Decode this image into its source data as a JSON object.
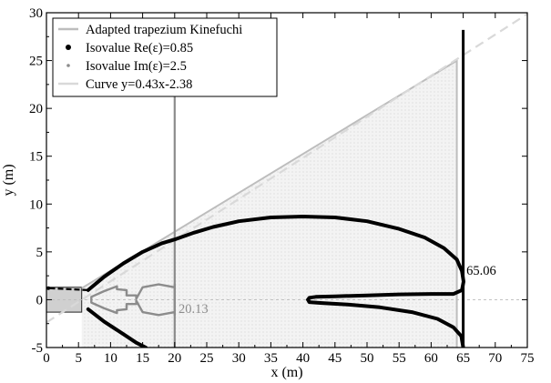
{
  "chart_data": {
    "type": "line",
    "xlabel": "x (m)",
    "ylabel": "y (m)",
    "xlim": [
      0,
      75
    ],
    "ylim": [
      -5,
      30
    ],
    "xticks": [
      "0",
      "5",
      "10",
      "15",
      "20",
      "25",
      "30",
      "35",
      "40",
      "45",
      "50",
      "55",
      "60",
      "65",
      "70",
      "75"
    ],
    "yticks": [
      "-5",
      "0",
      "5",
      "10",
      "15",
      "20",
      "25",
      "30"
    ],
    "grid": false,
    "legend_position": "top-left",
    "colors": {
      "trapezium": "#bdbdbd",
      "re_isovalue": "#000000",
      "im_isovalue": "#8c8c8c",
      "curve": "#d9d9d9",
      "fill": "#ececec"
    },
    "series": [
      {
        "name": "Adapted trapezium Kinefuchi",
        "style": "trapezium",
        "points": [
          [
            5.5,
            1.2
          ],
          [
            64,
            25.0
          ],
          [
            64,
            -5
          ],
          [
            5.5,
            -5
          ]
        ]
      },
      {
        "name": "Isovalue Re(ε)=0.85",
        "style": "re",
        "upper": [
          [
            6.5,
            1.0
          ],
          [
            9,
            2.4
          ],
          [
            12,
            3.8
          ],
          [
            15,
            5.0
          ],
          [
            18,
            5.9
          ],
          [
            20,
            6.3
          ],
          [
            23,
            7.0
          ],
          [
            26,
            7.6
          ],
          [
            30,
            8.2
          ],
          [
            35,
            8.6
          ],
          [
            40,
            8.7
          ],
          [
            45,
            8.6
          ],
          [
            50,
            8.2
          ],
          [
            55,
            7.4
          ],
          [
            59,
            6.5
          ],
          [
            62,
            5.4
          ],
          [
            64,
            4.2
          ],
          [
            64.8,
            3.0
          ],
          [
            65.06,
            1.9
          ],
          [
            64.8,
            1.0
          ],
          [
            63.5,
            0.6
          ],
          [
            60,
            0.6
          ],
          [
            55,
            0.55
          ],
          [
            50,
            0.45
          ],
          [
            45,
            0.35
          ],
          [
            42,
            0.3
          ],
          [
            41,
            0.2
          ],
          [
            40.8,
            0
          ]
        ],
        "lower": [
          [
            6.5,
            -1.0
          ],
          [
            9,
            -2.3
          ],
          [
            12,
            -3.6
          ],
          [
            14,
            -4.5
          ],
          [
            15.5,
            -5
          ]
        ],
        "inner_lower": [
          [
            40.8,
            0
          ],
          [
            41,
            -0.25
          ],
          [
            43,
            -0.35
          ],
          [
            47,
            -0.5
          ],
          [
            52,
            -0.8
          ],
          [
            57,
            -1.3
          ],
          [
            61,
            -2.0
          ],
          [
            63.5,
            -2.9
          ],
          [
            64.7,
            -3.8
          ],
          [
            65,
            -5
          ]
        ],
        "left_point": [
          0.3,
          1.2
        ]
      },
      {
        "name": "Isovalue Im(ε)=2.5",
        "style": "im",
        "points": [
          [
            7,
            0.3
          ],
          [
            9,
            0.9
          ],
          [
            11,
            1.4
          ],
          [
            11,
            1.1
          ],
          [
            12.5,
            1.0
          ],
          [
            12.5,
            0.45
          ],
          [
            14,
            0.45
          ],
          [
            14,
            0.1
          ],
          [
            15,
            1.3
          ],
          [
            17.5,
            1.6
          ],
          [
            20,
            1.3
          ],
          [
            20,
            1.6
          ],
          [
            20,
            -1.6
          ],
          [
            20,
            -1.3
          ],
          [
            17.5,
            -1.6
          ],
          [
            15,
            -1.3
          ],
          [
            14,
            -0.1
          ],
          [
            14,
            -0.45
          ],
          [
            12.5,
            -0.45
          ],
          [
            12.5,
            -1.0
          ],
          [
            11,
            -1.1
          ],
          [
            11,
            -1.4
          ],
          [
            9,
            -0.9
          ],
          [
            7,
            -0.3
          ]
        ]
      },
      {
        "name": "Curve y=0.43x-2.38",
        "style": "curve",
        "slope": 0.43,
        "intercept": -2.38
      }
    ],
    "vertical_lines": [
      {
        "x": 20,
        "y_range": [
          -5,
          24.5
        ],
        "color": "#8c8c8c"
      },
      {
        "x": 65,
        "y_range": [
          -5,
          28.2
        ],
        "color": "#000000"
      }
    ],
    "dash_line": {
      "x_range": [
        0,
        75
      ],
      "y": 0
    },
    "annotations": [
      {
        "text": "20.13",
        "x": 20.6,
        "y": -1.4,
        "color": "#8c8c8c"
      },
      {
        "text": "65.06",
        "x": 65.5,
        "y": 2.6,
        "color": "#000000"
      }
    ]
  },
  "legend": [
    {
      "label": "Adapted trapezium Kinefuchi",
      "marker": "line",
      "color": "#bdbdbd"
    },
    {
      "label": "Isovalue Re(ε)=0.85",
      "marker": "dot",
      "color": "#000000"
    },
    {
      "label": "Isovalue Im(ε)=2.5",
      "marker": "dot-small",
      "color": "#8c8c8c"
    },
    {
      "label": "Curve y=0.43x-2.38",
      "marker": "line",
      "color": "#d9d9d9"
    }
  ]
}
